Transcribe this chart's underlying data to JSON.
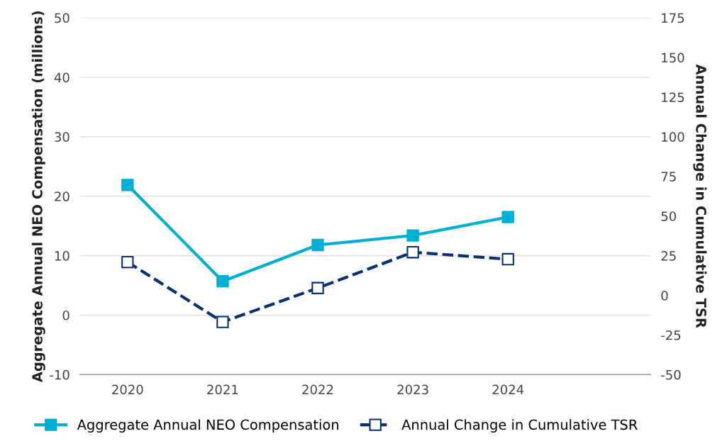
{
  "chart_data": {
    "type": "line",
    "categories": [
      "2020",
      "2021",
      "2022",
      "2023",
      "2024"
    ],
    "ylabel": "Aggregate Annual NEO Compensation (millions)",
    "y2label": "Annual Change in Cumulative TSR",
    "series": [
      {
        "name": "Aggregate Annual NEO Compensation",
        "color": "#00b0d4",
        "values": [
          21.9,
          5.7,
          11.8,
          13.4,
          16.5
        ],
        "marker": "square",
        "line_style": "solid"
      },
      {
        "name": "Annual Change in Cumulative TSR",
        "color": "#0b2f73",
        "values": [
          21.0,
          -16.8,
          4.6,
          27.2,
          22.8
        ],
        "marker": "square",
        "line_style": "dashed",
        "axis": "y2"
      }
    ],
    "ylim": [
      -10,
      50
    ],
    "yticks": [
      -10,
      0,
      10,
      20,
      30,
      40,
      50
    ],
    "y2lim": [
      -50,
      175
    ],
    "y2ticks": [
      -50,
      -25,
      0,
      25,
      50,
      75,
      100,
      125,
      150,
      175
    ],
    "grid": "y",
    "legend": "bottom"
  }
}
